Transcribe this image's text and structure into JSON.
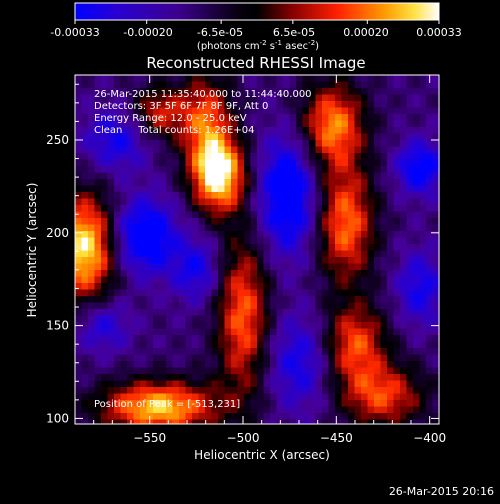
{
  "colorbar": {
    "tick_labels": [
      "-0.00033",
      "-0.00020",
      "-6.5e-05",
      "6.5e-05",
      "0.00020",
      "0.00033"
    ],
    "tick_values": [
      -0.00033,
      -0.0002,
      -6.5e-05,
      6.5e-05,
      0.0002,
      0.00033
    ],
    "range": [
      -0.00033,
      0.00033
    ],
    "units_main": "(photons cm",
    "units_sup1": "-2",
    "units_mid": " s",
    "units_sup2": "-1",
    "units_mid2": " asec",
    "units_sup3": "-2",
    "units_end": ")",
    "colors": [
      "#0000ff",
      "#1a00c8",
      "#3a00a0",
      "#000000",
      "#8a0000",
      "#ff3300",
      "#ff9900",
      "#ffffff"
    ]
  },
  "chart_data": {
    "type": "heatmap",
    "title": "Reconstructed RHESSI Image",
    "xlabel": "Heliocentric X (arcsec)",
    "ylabel": "Heliocentric Y (arcsec)",
    "xlim": [
      -590,
      -395
    ],
    "ylim": [
      97,
      285
    ],
    "x_ticks": [
      -550,
      -500,
      -450,
      -400
    ],
    "x_tick_labels": [
      "−550",
      "−500",
      "−450",
      "−400"
    ],
    "y_ticks": [
      100,
      150,
      200,
      250
    ],
    "y_tick_labels": [
      "100",
      "150",
      "200",
      "250"
    ],
    "annotations": [
      "26-Mar-2015 11:35:40.000 to 11:44:40.000",
      "Detectors: 3F 5F 6F 7F 8F 9F, Att 0",
      "Energy Range: 12.0 - 25.0 keV",
      "Clean     Total counts: 1.26E+04"
    ],
    "peak_label": "Position of Peak = [-513,231]",
    "peak_position": [
      -513,
      231
    ],
    "sources": [
      {
        "x": -513,
        "y": 231,
        "amp": 1.0,
        "sx": 10,
        "sy": 14
      },
      {
        "x": -585,
        "y": 192,
        "amp": 0.95,
        "sx": 12,
        "sy": 20
      },
      {
        "x": -545,
        "y": 106,
        "amp": 0.85,
        "sx": 22,
        "sy": 10
      },
      {
        "x": -500,
        "y": 155,
        "amp": 0.55,
        "sx": 10,
        "sy": 30
      },
      {
        "x": -452,
        "y": 258,
        "amp": 0.65,
        "sx": 12,
        "sy": 16
      },
      {
        "x": -445,
        "y": 205,
        "amp": 0.6,
        "sx": 11,
        "sy": 22
      },
      {
        "x": -440,
        "y": 140,
        "amp": 0.5,
        "sx": 12,
        "sy": 15
      },
      {
        "x": -425,
        "y": 112,
        "amp": 0.45,
        "sx": 16,
        "sy": 12
      },
      {
        "x": -545,
        "y": 265,
        "amp": 0.35,
        "sx": 10,
        "sy": 10
      },
      {
        "x": -520,
        "y": 260,
        "amp": 0.5,
        "sx": 10,
        "sy": 18
      }
    ],
    "negative_sources": [
      {
        "x": -553,
        "y": 198,
        "amp": -0.9,
        "sx": 12,
        "sy": 14
      },
      {
        "x": -476,
        "y": 220,
        "amp": -0.9,
        "sx": 11,
        "sy": 22
      },
      {
        "x": -405,
        "y": 235,
        "amp": -0.75,
        "sx": 9,
        "sy": 10
      },
      {
        "x": -568,
        "y": 250,
        "amp": -0.55,
        "sx": 12,
        "sy": 12
      },
      {
        "x": -470,
        "y": 130,
        "amp": -0.55,
        "sx": 12,
        "sy": 18
      },
      {
        "x": -405,
        "y": 170,
        "amp": -0.55,
        "sx": 9,
        "sy": 14
      },
      {
        "x": -575,
        "y": 150,
        "amp": -0.5,
        "sx": 10,
        "sy": 10
      },
      {
        "x": -525,
        "y": 180,
        "amp": -0.55,
        "sx": 9,
        "sy": 12
      }
    ]
  },
  "footer": {
    "timestamp": "26-Mar-2015 20:16"
  }
}
